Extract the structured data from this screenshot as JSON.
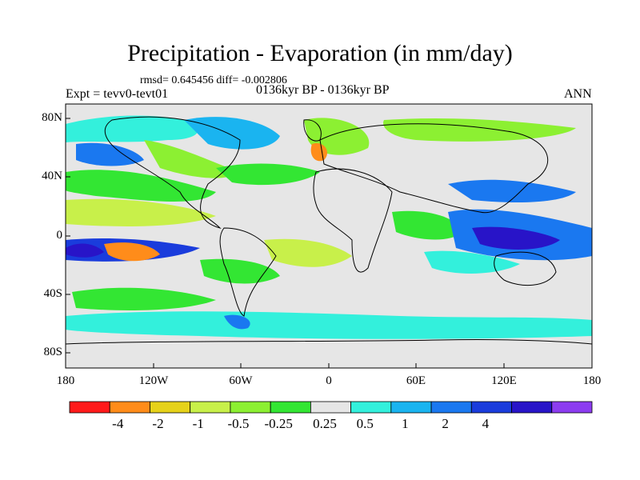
{
  "title": "Precipitation - Evaporation (in mm/day)",
  "stats": "rmsd= 0.645456 diff= -0.002806",
  "experiment": "Expt = tevv0-tevt01",
  "period": "0136kyr BP - 0136kyr BP",
  "season": "ANN",
  "lat_ticks": [
    "80N",
    "40N",
    "0",
    "40S",
    "80S"
  ],
  "lon_ticks": [
    "180",
    "120W",
    "60W",
    "0",
    "60E",
    "120E",
    "180"
  ],
  "colorbar": {
    "labels": [
      "-4",
      "-2",
      "-1",
      "-0.5",
      "-0.25",
      "0.25",
      "0.5",
      "1",
      "2",
      "4"
    ],
    "colors": [
      "#ff1a1a",
      "#ff8c1a",
      "#e6d21a",
      "#c8f04a",
      "#8cf032",
      "#33e633",
      "#e6e6e6",
      "#33f0dc",
      "#1ab4f0",
      "#1a78f0",
      "#1a3cdc",
      "#2814c8",
      "#8c3cf0"
    ]
  }
}
